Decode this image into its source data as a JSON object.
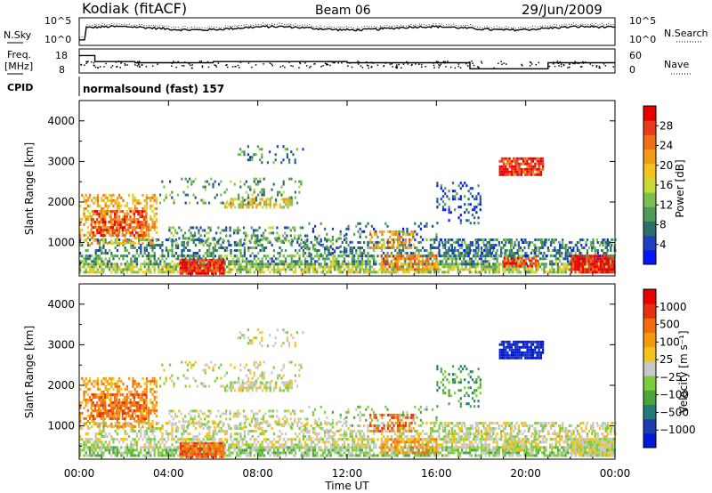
{
  "header": {
    "station": "Kodiak (fitACF)",
    "beam": "Beam 06",
    "date": "29/Jun/2009"
  },
  "noise_panel": {
    "left_label": "N.Sky",
    "right_label": "N.Search",
    "left_ticks": [
      "10^5",
      "10^0"
    ],
    "right_ticks": [
      "10^5",
      "10^0"
    ]
  },
  "freq_panel": {
    "left_label_1": "Freq.",
    "left_label_2": "[MHz]",
    "left_ticks": [
      "18",
      "8"
    ],
    "right_label": "Nave",
    "right_ticks": [
      "60",
      "0"
    ]
  },
  "cpid": {
    "label": "CPID",
    "value": "normalsound (fast) 157"
  },
  "colors": {
    "power_scale": [
      "#0018ff",
      "#1f3fbf",
      "#2a6f6a",
      "#4f9a58",
      "#79c050",
      "#c8d83a",
      "#f2c21e",
      "#f39a1a",
      "#ef6e1a",
      "#e83a1a",
      "#e60000"
    ],
    "velocity_scale": [
      "#0018d8",
      "#1e3cb0",
      "#227a7a",
      "#4aa53b",
      "#7acd3c",
      "#c8c8c8",
      "#f5c21a",
      "#f59a10",
      "#f36a10",
      "#e83010",
      "#e60000"
    ]
  },
  "chart_data": [
    {
      "type": "heatmap",
      "name": "power",
      "ylabel": "Slant Range [km]",
      "yticks": [
        "1000",
        "2000",
        "3000",
        "4000"
      ],
      "ylim": [
        180,
        4500
      ],
      "xlim": [
        0,
        24
      ],
      "colorbar_label": "Power [dB]",
      "colorbar_ticks": [
        "4",
        "8",
        "12",
        "16",
        "20",
        "24",
        "28"
      ],
      "colorbar_range": [
        0,
        32
      ]
    },
    {
      "type": "heatmap",
      "name": "velocity",
      "ylabel": "Slant Range [km]",
      "yticks": [
        "1000",
        "2000",
        "3000",
        "4000"
      ],
      "ylim": [
        180,
        4500
      ],
      "xlim": [
        0,
        24
      ],
      "colorbar_label": "Velocity [m s⁻¹]",
      "colorbar_ticks": [
        "1000",
        "500",
        "100",
        "25",
        "−25",
        "−100",
        "−500",
        "−1000"
      ]
    }
  ],
  "x_axis": {
    "ticks": [
      "00:00",
      "04:00",
      "08:00",
      "12:00",
      "16:00",
      "20:00",
      "00:00"
    ],
    "label": "Time UT"
  }
}
